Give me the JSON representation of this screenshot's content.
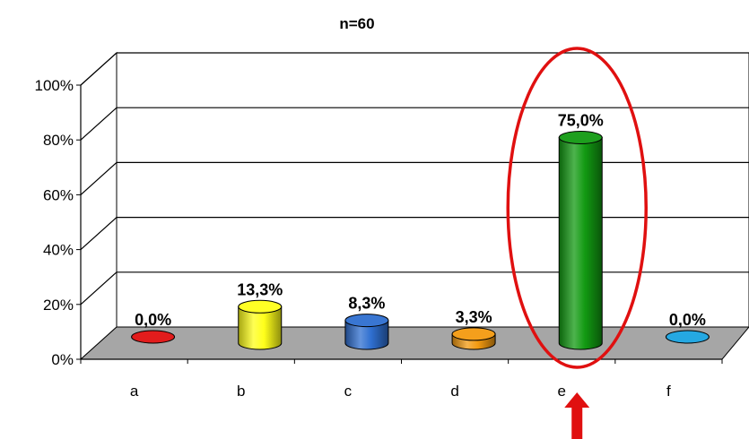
{
  "chart_data": {
    "type": "bar",
    "title": "n=60",
    "categories": [
      "a",
      "b",
      "c",
      "d",
      "e",
      "f"
    ],
    "values": [
      0.0,
      13.3,
      8.3,
      3.3,
      75.0,
      0.0
    ],
    "value_labels": [
      "0,0%",
      "13,3%",
      "8,3%",
      "3,3%",
      "75,0%",
      "0,0%"
    ],
    "colors": [
      "#e01010",
      "#ffff1a",
      "#2f6fd0",
      "#f39a10",
      "#129a12",
      "#1aa3e0"
    ],
    "yticks": [
      "0%",
      "20%",
      "40%",
      "60%",
      "80%",
      "100%"
    ],
    "ylim": [
      0,
      100
    ],
    "grid": true,
    "style": "3d-cylinder",
    "annotations": [
      {
        "type": "ellipse",
        "target_category": "e",
        "color": "#e01010"
      },
      {
        "type": "arrow",
        "target_category": "e",
        "color": "#e01010",
        "direction": "up"
      }
    ]
  }
}
